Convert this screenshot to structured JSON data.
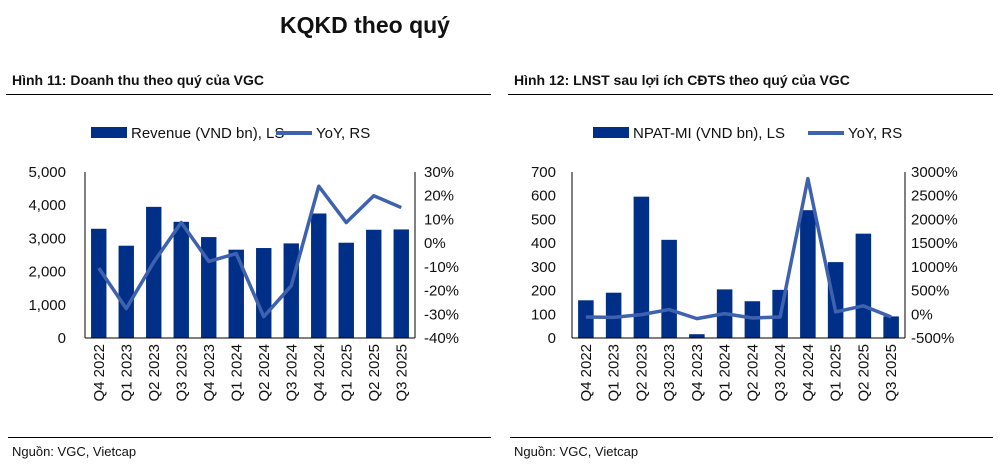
{
  "page_title": "KQKD theo quý",
  "chart_data": [
    {
      "type": "bar",
      "title": "Hình 11: Doanh thu theo quý của VGC",
      "source": "Nguồn: VGC, Vietcap",
      "categories": [
        "Q4 2022",
        "Q1 2023",
        "Q2 2023",
        "Q3 2023",
        "Q4 2023",
        "Q1 2024",
        "Q2 2024",
        "Q3 2024",
        "Q4 2024",
        "Q1 2025",
        "Q2 2025",
        "Q3 2025"
      ],
      "series": [
        {
          "name": "Revenue (VND bn), LS",
          "type": "bar",
          "axis": "left",
          "values": [
            3290,
            2780,
            3950,
            3500,
            3040,
            2660,
            2710,
            2850,
            3750,
            2870,
            3260,
            3270
          ]
        },
        {
          "name": "YoY, RS",
          "type": "line",
          "axis": "right",
          "values": [
            -10.5,
            -27.6,
            -8,
            8.7,
            -7.7,
            -4.4,
            -31,
            -18,
            24,
            8.7,
            20,
            15
          ]
        }
      ],
      "ylim": [
        0,
        5000
      ],
      "yticks": [
        "0",
        "1,000",
        "2,000",
        "3,000",
        "4,000",
        "5,000"
      ],
      "y2lim": [
        -40,
        30
      ],
      "y2ticks": [
        "-40%",
        "-30%",
        "-20%",
        "-10%",
        "0%",
        "10%",
        "20%",
        "30%"
      ],
      "legend": "top"
    },
    {
      "type": "bar",
      "title": "Hình 12: LNST sau lợi ích CĐTS theo quý của VGC",
      "source": "Nguồn: VGC, Vietcap",
      "categories": [
        "Q4 2022",
        "Q1 2023",
        "Q2 2023",
        "Q3 2023",
        "Q4 2023",
        "Q1 2024",
        "Q2 2024",
        "Q3 2024",
        "Q4 2024",
        "Q1 2025",
        "Q2 2025",
        "Q3 2025"
      ],
      "series": [
        {
          "name": "NPAT-MI (VND bn), LS",
          "type": "bar",
          "axis": "left",
          "values": [
            159,
            191,
            596,
            414,
            16,
            205,
            155,
            203,
            539,
            320,
            440,
            91
          ]
        },
        {
          "name": "YoY, RS",
          "type": "line",
          "axis": "right",
          "values": [
            -57,
            -64,
            -7,
            100,
            -92,
            14,
            -78,
            -57,
            2860,
            50,
            178,
            -57
          ]
        }
      ],
      "ylim": [
        0,
        700
      ],
      "yticks": [
        "0",
        "100",
        "200",
        "300",
        "400",
        "500",
        "600",
        "700"
      ],
      "y2lim": [
        -500,
        3000
      ],
      "y2ticks": [
        "-500%",
        "0%",
        "500%",
        "1000%",
        "1500%",
        "2000%",
        "2500%",
        "3000%"
      ],
      "legend": "top"
    }
  ],
  "colors": {
    "bar": "#002f87",
    "line": "#3e62ae"
  }
}
